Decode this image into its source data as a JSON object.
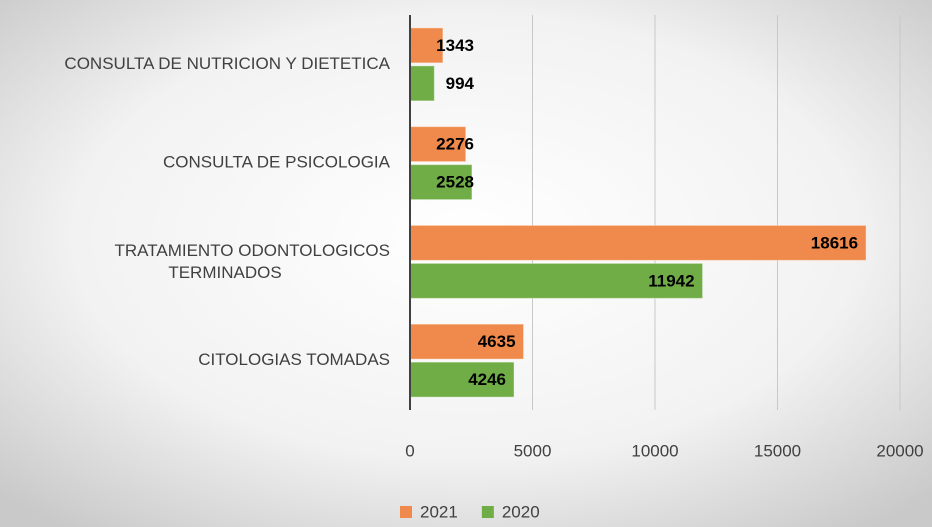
{
  "chart_data": {
    "type": "bar",
    "orientation": "horizontal",
    "categories": [
      "CONSULTA DE NUTRICION Y DIETETICA",
      "CONSULTA DE PSICOLOGIA",
      "TRATAMIENTO ODONTOLOGICOS TERMINADOS",
      "CITOLOGIAS TOMADAS"
    ],
    "series": [
      {
        "name": "2021",
        "color": "#ef8a4c",
        "values": [
          1343,
          2276,
          18616,
          4635
        ]
      },
      {
        "name": "2020",
        "color": "#70ad47",
        "values": [
          994,
          2528,
          11942,
          4246
        ]
      }
    ],
    "xlim": [
      0,
      20000
    ],
    "xticks": [
      0,
      5000,
      10000,
      15000,
      20000
    ],
    "grid": true,
    "legend": "bottom"
  }
}
